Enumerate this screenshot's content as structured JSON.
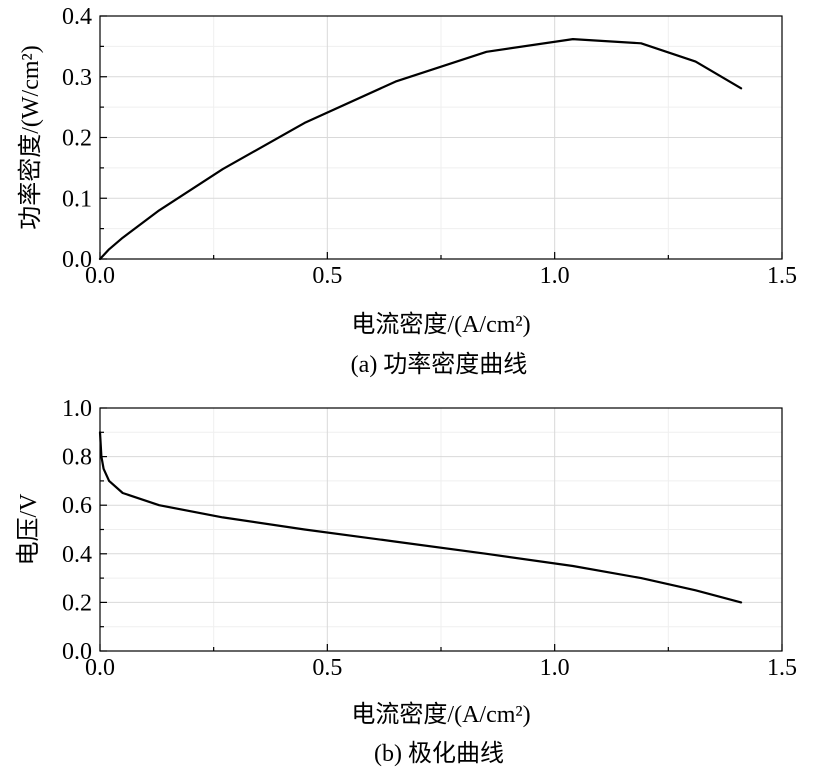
{
  "chart_data": [
    {
      "type": "line",
      "title": "",
      "caption": "(a) 功率密度曲线",
      "xlabel": "电流密度/(A/cm²)",
      "ylabel": "功率密度/(W/cm²)",
      "xlim": [
        0,
        1.5
      ],
      "ylim": [
        0,
        0.4
      ],
      "xticks": [
        "0.0",
        "0.5",
        "1.0",
        "1.5"
      ],
      "yticks": [
        "0.0",
        "0.1",
        "0.2",
        "0.3",
        "0.4"
      ],
      "grid": true,
      "series": [
        {
          "x": [
            0,
            0.02,
            0.05,
            0.13,
            0.27,
            0.45,
            0.65,
            0.85,
            1.04,
            1.19,
            1.31,
            1.41
          ],
          "y": [
            0,
            0.016,
            0.035,
            0.08,
            0.148,
            0.224,
            0.292,
            0.341,
            0.362,
            0.355,
            0.325,
            0.281
          ]
        }
      ]
    },
    {
      "type": "line",
      "title": "",
      "caption": "(b) 极化曲线",
      "xlabel": "电流密度/(A/cm²)",
      "ylabel": "电压/V",
      "xlim": [
        0,
        1.5
      ],
      "ylim": [
        0,
        1.0
      ],
      "xticks": [
        "0.0",
        "0.5",
        "1.0",
        "1.5"
      ],
      "yticks": [
        "0.0",
        "0.2",
        "0.4",
        "0.6",
        "0.8",
        "1.0"
      ],
      "grid": true,
      "series": [
        {
          "x": [
            0,
            0.003,
            0.008,
            0.02,
            0.05,
            0.13,
            0.27,
            0.45,
            0.65,
            0.85,
            1.04,
            1.19,
            1.31,
            1.41
          ],
          "y": [
            0.9,
            0.8,
            0.75,
            0.7,
            0.65,
            0.6,
            0.55,
            0.5,
            0.45,
            0.4,
            0.35,
            0.3,
            0.25,
            0.2
          ]
        }
      ]
    }
  ]
}
